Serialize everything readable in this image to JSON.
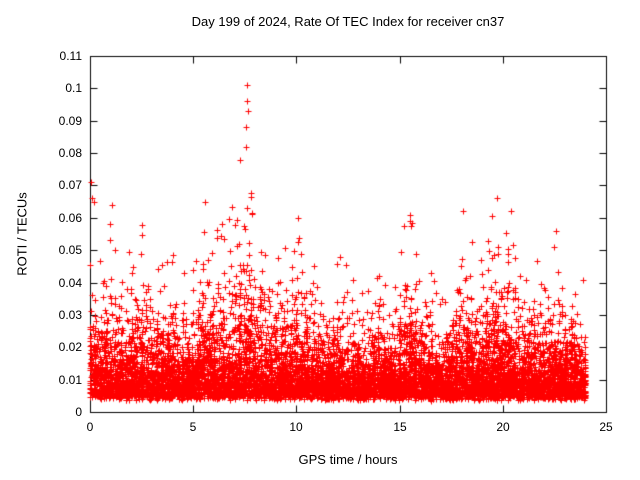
{
  "page": {
    "background": "#ffffff"
  },
  "chart_data": {
    "type": "scatter",
    "title": "Day 199 of 2024, Rate Of TEC Index for receiver cn37",
    "xlabel": "GPS time / hours",
    "ylabel": "ROTI / TECUs",
    "xlim": [
      0,
      25
    ],
    "ylim": [
      0,
      0.11
    ],
    "xtick_values": [
      0,
      5,
      10,
      15,
      20,
      25
    ],
    "xtick_labels": [
      "0",
      "5",
      "10",
      "15",
      "20",
      "25"
    ],
    "ytick_values": [
      0,
      0.01,
      0.02,
      0.03,
      0.04,
      0.05,
      0.06,
      0.07,
      0.08,
      0.09,
      0.1,
      0.11
    ],
    "ytick_labels": [
      "0",
      "0.01",
      "0.02",
      "0.03",
      "0.04",
      "0.05",
      "0.06",
      "0.07",
      "0.08",
      "0.09",
      "0.1",
      "0.11"
    ],
    "marker": "+",
    "marker_color": "#ff0000",
    "axis_color": "#000000",
    "grid": false,
    "legend": "none",
    "data_x_range": [
      0,
      24
    ],
    "point_cloud": {
      "n_points": 9000,
      "seed": 1724,
      "baseline": 0.0045,
      "spread_divisor": 6,
      "cluster_fraction": 0.35,
      "envelope": [
        [
          0,
          0.072
        ],
        [
          0.2,
          0.066
        ],
        [
          0.5,
          0.056
        ],
        [
          0.8,
          0.06
        ],
        [
          1,
          0.065
        ],
        [
          1.3,
          0.052
        ],
        [
          1.7,
          0.048
        ],
        [
          2,
          0.055
        ],
        [
          2.5,
          0.06
        ],
        [
          3,
          0.052
        ],
        [
          3.5,
          0.046
        ],
        [
          4,
          0.06
        ],
        [
          4.3,
          0.05
        ],
        [
          4.7,
          0.045
        ],
        [
          5,
          0.055
        ],
        [
          5.5,
          0.065
        ],
        [
          6,
          0.056
        ],
        [
          6.5,
          0.06
        ],
        [
          7,
          0.066
        ],
        [
          7.4,
          0.085
        ],
        [
          7.6,
          0.101
        ],
        [
          7.8,
          0.095
        ],
        [
          8,
          0.07
        ],
        [
          8.3,
          0.06
        ],
        [
          8.7,
          0.055
        ],
        [
          9,
          0.05
        ],
        [
          9.5,
          0.055
        ],
        [
          10,
          0.06
        ],
        [
          10.5,
          0.05
        ],
        [
          11,
          0.045
        ],
        [
          11.5,
          0.04
        ],
        [
          12,
          0.05
        ],
        [
          12.5,
          0.046
        ],
        [
          13,
          0.04
        ],
        [
          13.5,
          0.045
        ],
        [
          14,
          0.046
        ],
        [
          14.5,
          0.04
        ],
        [
          15,
          0.056
        ],
        [
          15.5,
          0.062
        ],
        [
          16,
          0.05
        ],
        [
          16.5,
          0.045
        ],
        [
          17,
          0.04
        ],
        [
          17.5,
          0.046
        ],
        [
          18,
          0.06
        ],
        [
          18.5,
          0.055
        ],
        [
          19,
          0.05
        ],
        [
          19.5,
          0.066
        ],
        [
          20,
          0.062
        ],
        [
          20.5,
          0.055
        ],
        [
          21,
          0.05
        ],
        [
          21.5,
          0.046
        ],
        [
          22,
          0.05
        ],
        [
          22.5,
          0.056
        ],
        [
          23,
          0.046
        ],
        [
          23.5,
          0.05
        ],
        [
          24,
          0.042
        ]
      ]
    },
    "peaks": [
      [
        7.62,
        0.101
      ],
      [
        7.6,
        0.096
      ],
      [
        7.65,
        0.093
      ],
      [
        7.55,
        0.088
      ],
      [
        7.58,
        0.082
      ],
      [
        0.05,
        0.071
      ],
      [
        0.1,
        0.066
      ],
      [
        19.7,
        0.066
      ],
      [
        5.55,
        0.065
      ],
      [
        1.05,
        0.064
      ],
      [
        20.4,
        0.062
      ],
      [
        18.05,
        0.062
      ],
      [
        15.5,
        0.061
      ],
      [
        10.1,
        0.06
      ],
      [
        22.6,
        0.056
      ]
    ]
  }
}
